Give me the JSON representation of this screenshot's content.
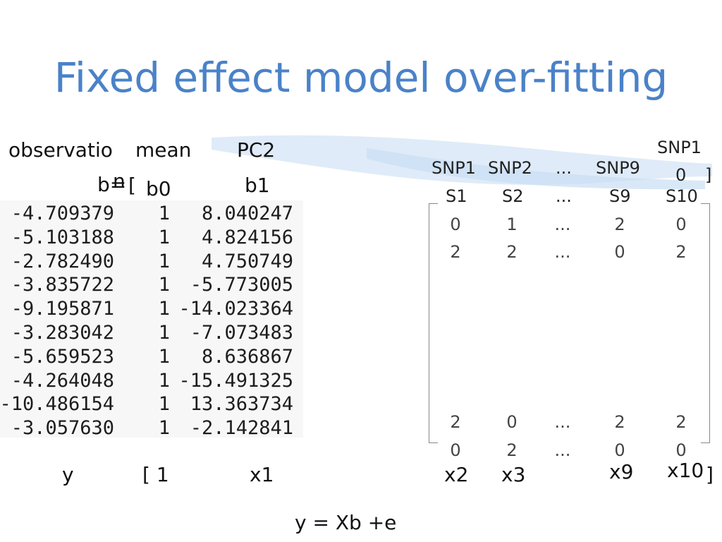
{
  "title": "Fixed effect model over-fitting",
  "left_headers": {
    "observation": "observatio",
    "observation_wrap": "n",
    "b_equals": "b=",
    "mean": "mean",
    "bracket_open": "[",
    "b0": "b0",
    "pc2": "PC2",
    "b1": "b1"
  },
  "data_table": {
    "rows": [
      [
        "-4.709379",
        "1",
        "8.040247"
      ],
      [
        "-5.103188",
        "1",
        "4.824156"
      ],
      [
        "-2.782490",
        "1",
        "4.750749"
      ],
      [
        "-3.835722",
        "1",
        "-5.773005"
      ],
      [
        "-9.195871",
        "1",
        "-14.023364"
      ],
      [
        "-3.283042",
        "1",
        "-7.073483"
      ],
      [
        "-5.659523",
        "1",
        "8.636867"
      ],
      [
        "-4.264048",
        "1",
        "-15.491325"
      ],
      [
        "-10.486154",
        "1",
        "13.363734"
      ],
      [
        "-3.057630",
        "1",
        "-2.142841"
      ]
    ]
  },
  "snp_headers": {
    "snp_labels": [
      "SNP1",
      "SNP2",
      "...",
      "SNP9"
    ],
    "snp10_top": "SNP1",
    "snp10_bottom": "0",
    "bracket_close": "]",
    "b_labels": [
      "S1",
      "S2",
      "...",
      "S9",
      "S10"
    ]
  },
  "snp_matrix": {
    "top_rows": [
      [
        "0",
        "1",
        "...",
        "2",
        "0"
      ],
      [
        "2",
        "2",
        "...",
        "0",
        "2"
      ]
    ],
    "bottom_rows": [
      [
        "2",
        "0",
        "...",
        "2",
        "2"
      ],
      [
        "0",
        "2",
        "...",
        "0",
        "0"
      ]
    ]
  },
  "bottom_labels": {
    "y": "y",
    "one": "[ 1",
    "x1": "x1",
    "x2": "x2",
    "x3": "x3",
    "x9": "x9",
    "x10": "x10",
    "close": "]"
  },
  "equation": "y = Xb +e"
}
